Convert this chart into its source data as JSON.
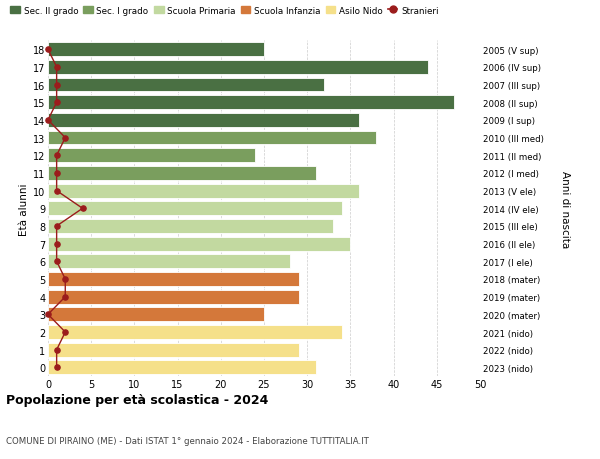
{
  "ages": [
    18,
    17,
    16,
    15,
    14,
    13,
    12,
    11,
    10,
    9,
    8,
    7,
    6,
    5,
    4,
    3,
    2,
    1,
    0
  ],
  "right_labels": [
    "2005 (V sup)",
    "2006 (IV sup)",
    "2007 (III sup)",
    "2008 (II sup)",
    "2009 (I sup)",
    "2010 (III med)",
    "2011 (II med)",
    "2012 (I med)",
    "2013 (V ele)",
    "2014 (IV ele)",
    "2015 (III ele)",
    "2016 (II ele)",
    "2017 (I ele)",
    "2018 (mater)",
    "2019 (mater)",
    "2020 (mater)",
    "2021 (nido)",
    "2022 (nido)",
    "2023 (nido)"
  ],
  "bar_values": [
    25,
    44,
    32,
    47,
    36,
    38,
    24,
    31,
    36,
    34,
    33,
    35,
    28,
    29,
    29,
    25,
    34,
    29,
    31
  ],
  "stranieri_values": [
    0,
    1,
    1,
    1,
    0,
    2,
    1,
    1,
    1,
    4,
    1,
    1,
    1,
    2,
    2,
    0,
    2,
    1,
    1
  ],
  "bar_colors": [
    "#4a7043",
    "#4a7043",
    "#4a7043",
    "#4a7043",
    "#4a7043",
    "#7a9e5e",
    "#7a9e5e",
    "#7a9e5e",
    "#c2d9a0",
    "#c2d9a0",
    "#c2d9a0",
    "#c2d9a0",
    "#c2d9a0",
    "#d4783a",
    "#d4783a",
    "#d4783a",
    "#f5e08a",
    "#f5e08a",
    "#f5e08a"
  ],
  "legend_items": [
    {
      "label": "Sec. II grado",
      "color": "#4a7043",
      "type": "patch"
    },
    {
      "label": "Sec. I grado",
      "color": "#7a9e5e",
      "type": "patch"
    },
    {
      "label": "Scuola Primaria",
      "color": "#c2d9a0",
      "type": "patch"
    },
    {
      "label": "Scuola Infanzia",
      "color": "#d4783a",
      "type": "patch"
    },
    {
      "label": "Asilo Nido",
      "color": "#f5e08a",
      "type": "patch"
    },
    {
      "label": "Stranieri",
      "color": "#9b1c1c",
      "type": "line"
    }
  ],
  "ylabel_left": "Età alunni",
  "ylabel_right": "Anni di nascita",
  "xlim": [
    0,
    50
  ],
  "xticks": [
    0,
    5,
    10,
    15,
    20,
    25,
    30,
    35,
    40,
    45,
    50
  ],
  "title": "Popolazione per età scolastica - 2024",
  "subtitle": "COMUNE DI PIRAINO (ME) - Dati ISTAT 1° gennaio 2024 - Elaborazione TUTTITALIA.IT",
  "bg_color": "#ffffff",
  "grid_color": "#cccccc"
}
